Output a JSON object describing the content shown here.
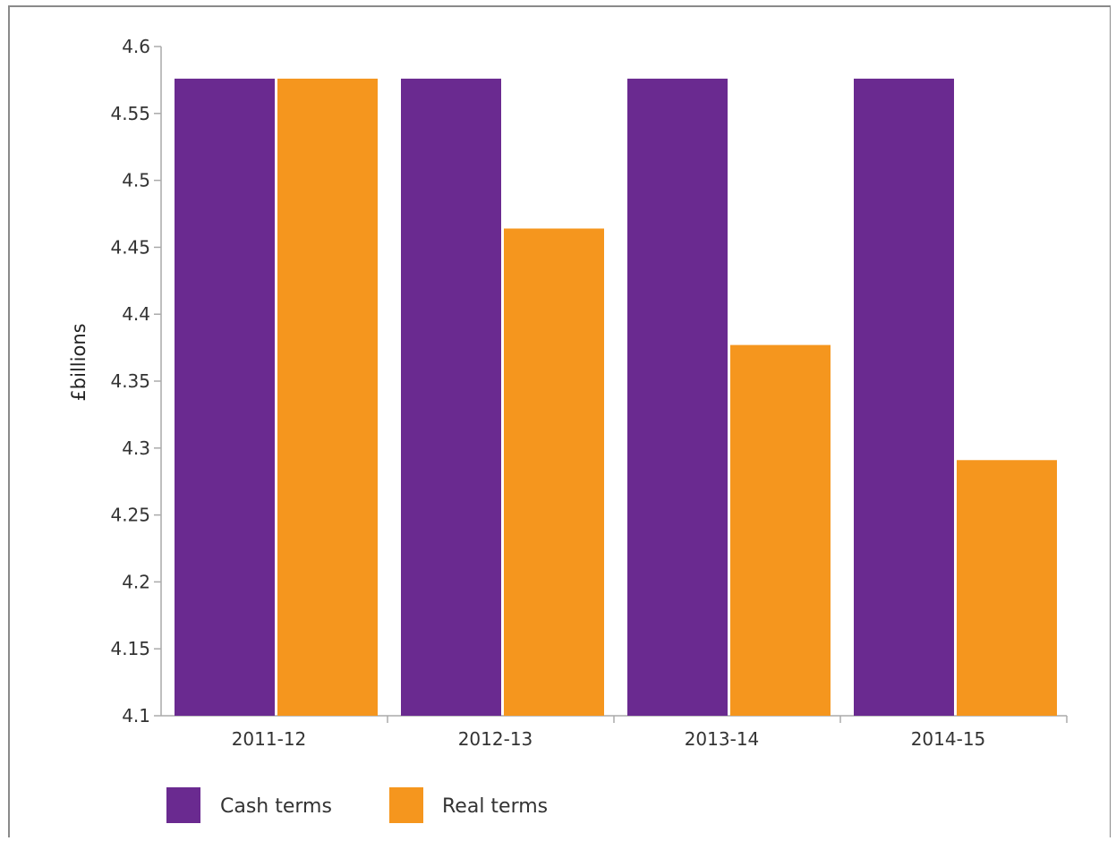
{
  "chart_data": {
    "type": "bar",
    "title": "",
    "xlabel": "",
    "ylabel": "£billions",
    "ylim": [
      4.1,
      4.6
    ],
    "yticks": [
      "4.1",
      "4.15",
      "4.2",
      "4.25",
      "4.3",
      "4.35",
      "4.4",
      "4.45",
      "4.5",
      "4.55",
      "4.6"
    ],
    "categories": [
      "2011-12",
      "2012-13",
      "2013-14",
      "2014-15"
    ],
    "series": [
      {
        "name": "Cash terms",
        "color": "#6a2a90",
        "values": [
          4.576,
          4.576,
          4.576,
          4.576
        ]
      },
      {
        "name": "Real terms",
        "color": "#f5961e",
        "values": [
          4.576,
          4.464,
          4.377,
          4.291
        ]
      }
    ],
    "grid": false,
    "legend_position": "bottom-left"
  }
}
